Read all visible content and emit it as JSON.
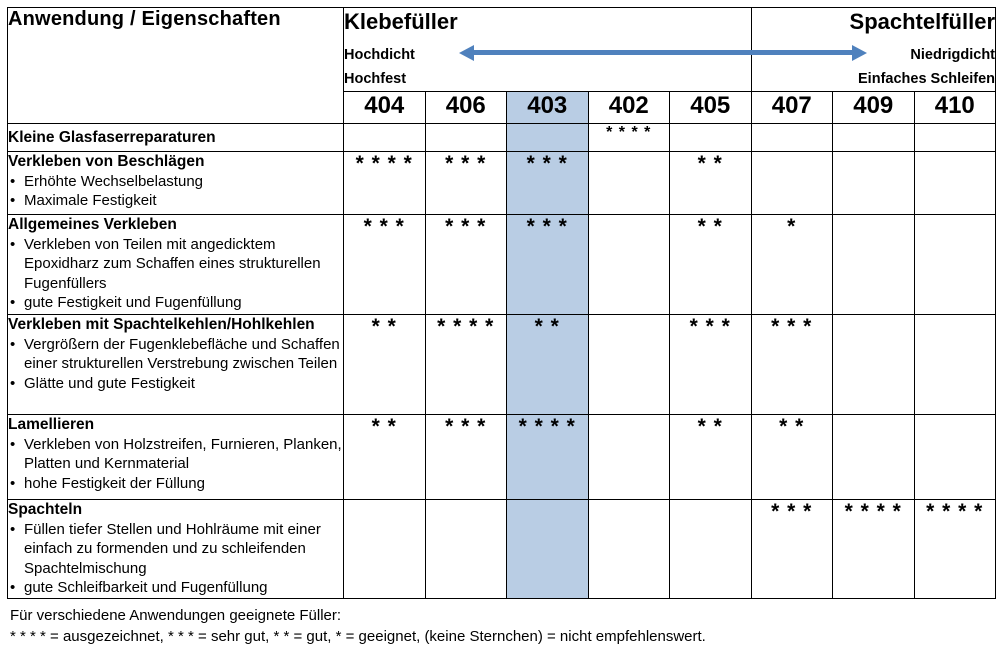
{
  "header": {
    "corner_label": "Anwendung / Eigenschaften",
    "klebefueller": {
      "title": "Klebefüller",
      "property_top": "Hochdicht",
      "property_bottom": "Hochfest"
    },
    "spachtelfueller": {
      "title": "Spachtelfüller",
      "property_top": "Niedrigdicht",
      "property_bottom": "Einfaches Schleifen"
    },
    "columns": [
      "404",
      "406",
      "403",
      "402",
      "405",
      "407",
      "409",
      "410"
    ],
    "highlighted_column": "403"
  },
  "rows": [
    {
      "title": "Kleine Glasfaserreparaturen",
      "bullets": [],
      "cells": [
        "",
        "",
        "",
        "* * * *",
        "",
        "",
        "",
        ""
      ]
    },
    {
      "title": "Verkleben von Beschlägen",
      "bullets": [
        "Erhöhte Wechselbelastung",
        "Maximale Festigkeit"
      ],
      "cells": [
        "* * * *",
        "* * *",
        "* * *",
        "",
        "* *",
        "",
        "",
        ""
      ]
    },
    {
      "title": "Allgemeines Verkleben",
      "bullets": [
        "Verkleben von Teilen mit angedicktem Epoxidharz zum Schaffen eines strukturellen Fugenfüllers",
        "gute Festigkeit und Fugenfüllung"
      ],
      "cells": [
        "* * *",
        "* * *",
        "* * *",
        "",
        "* *",
        "*",
        "",
        ""
      ]
    },
    {
      "title": "Verkleben mit Spachtelkehlen/Hohlkehlen",
      "bullets": [
        "Vergrößern der Fugenklebefläche und Schaffen einer strukturellen Verstrebung zwischen Teilen",
        "Glätte und gute Festigkeit"
      ],
      "cells": [
        "* *",
        "* * * *",
        "* *",
        "",
        "* * *",
        "* * *",
        "",
        ""
      ]
    },
    {
      "title": "Lamellieren",
      "bullets": [
        "Verkleben von Holzstreifen, Furnieren, Planken, Platten und Kernmaterial",
        "hohe Festigkeit der Füllung"
      ],
      "cells": [
        "* *",
        "* * *",
        "* * * *",
        "",
        "* *",
        "* *",
        "",
        ""
      ]
    },
    {
      "title": "Spachteln",
      "bullets": [
        "Füllen tiefer Stellen und Hohlräume mit einer einfach zu formenden und zu schleifenden Spachtelmischung",
        "gute Schleifbarkeit und Fugenfüllung"
      ],
      "cells": [
        "",
        "",
        "",
        "",
        "",
        "* * *",
        "* * * *",
        "* * * *"
      ]
    }
  ],
  "legend": {
    "line1": "Für verschiedene Anwendungen geeignete Füller:",
    "line2": "* * * * = ausgezeichnet, * * * = sehr gut, * * = gut, * = geeignet, (keine Sternchen) = nicht empfehlenswert."
  },
  "colors": {
    "highlight": "#b9cde4",
    "arrow": "#4f81bd",
    "border": "#000000"
  }
}
